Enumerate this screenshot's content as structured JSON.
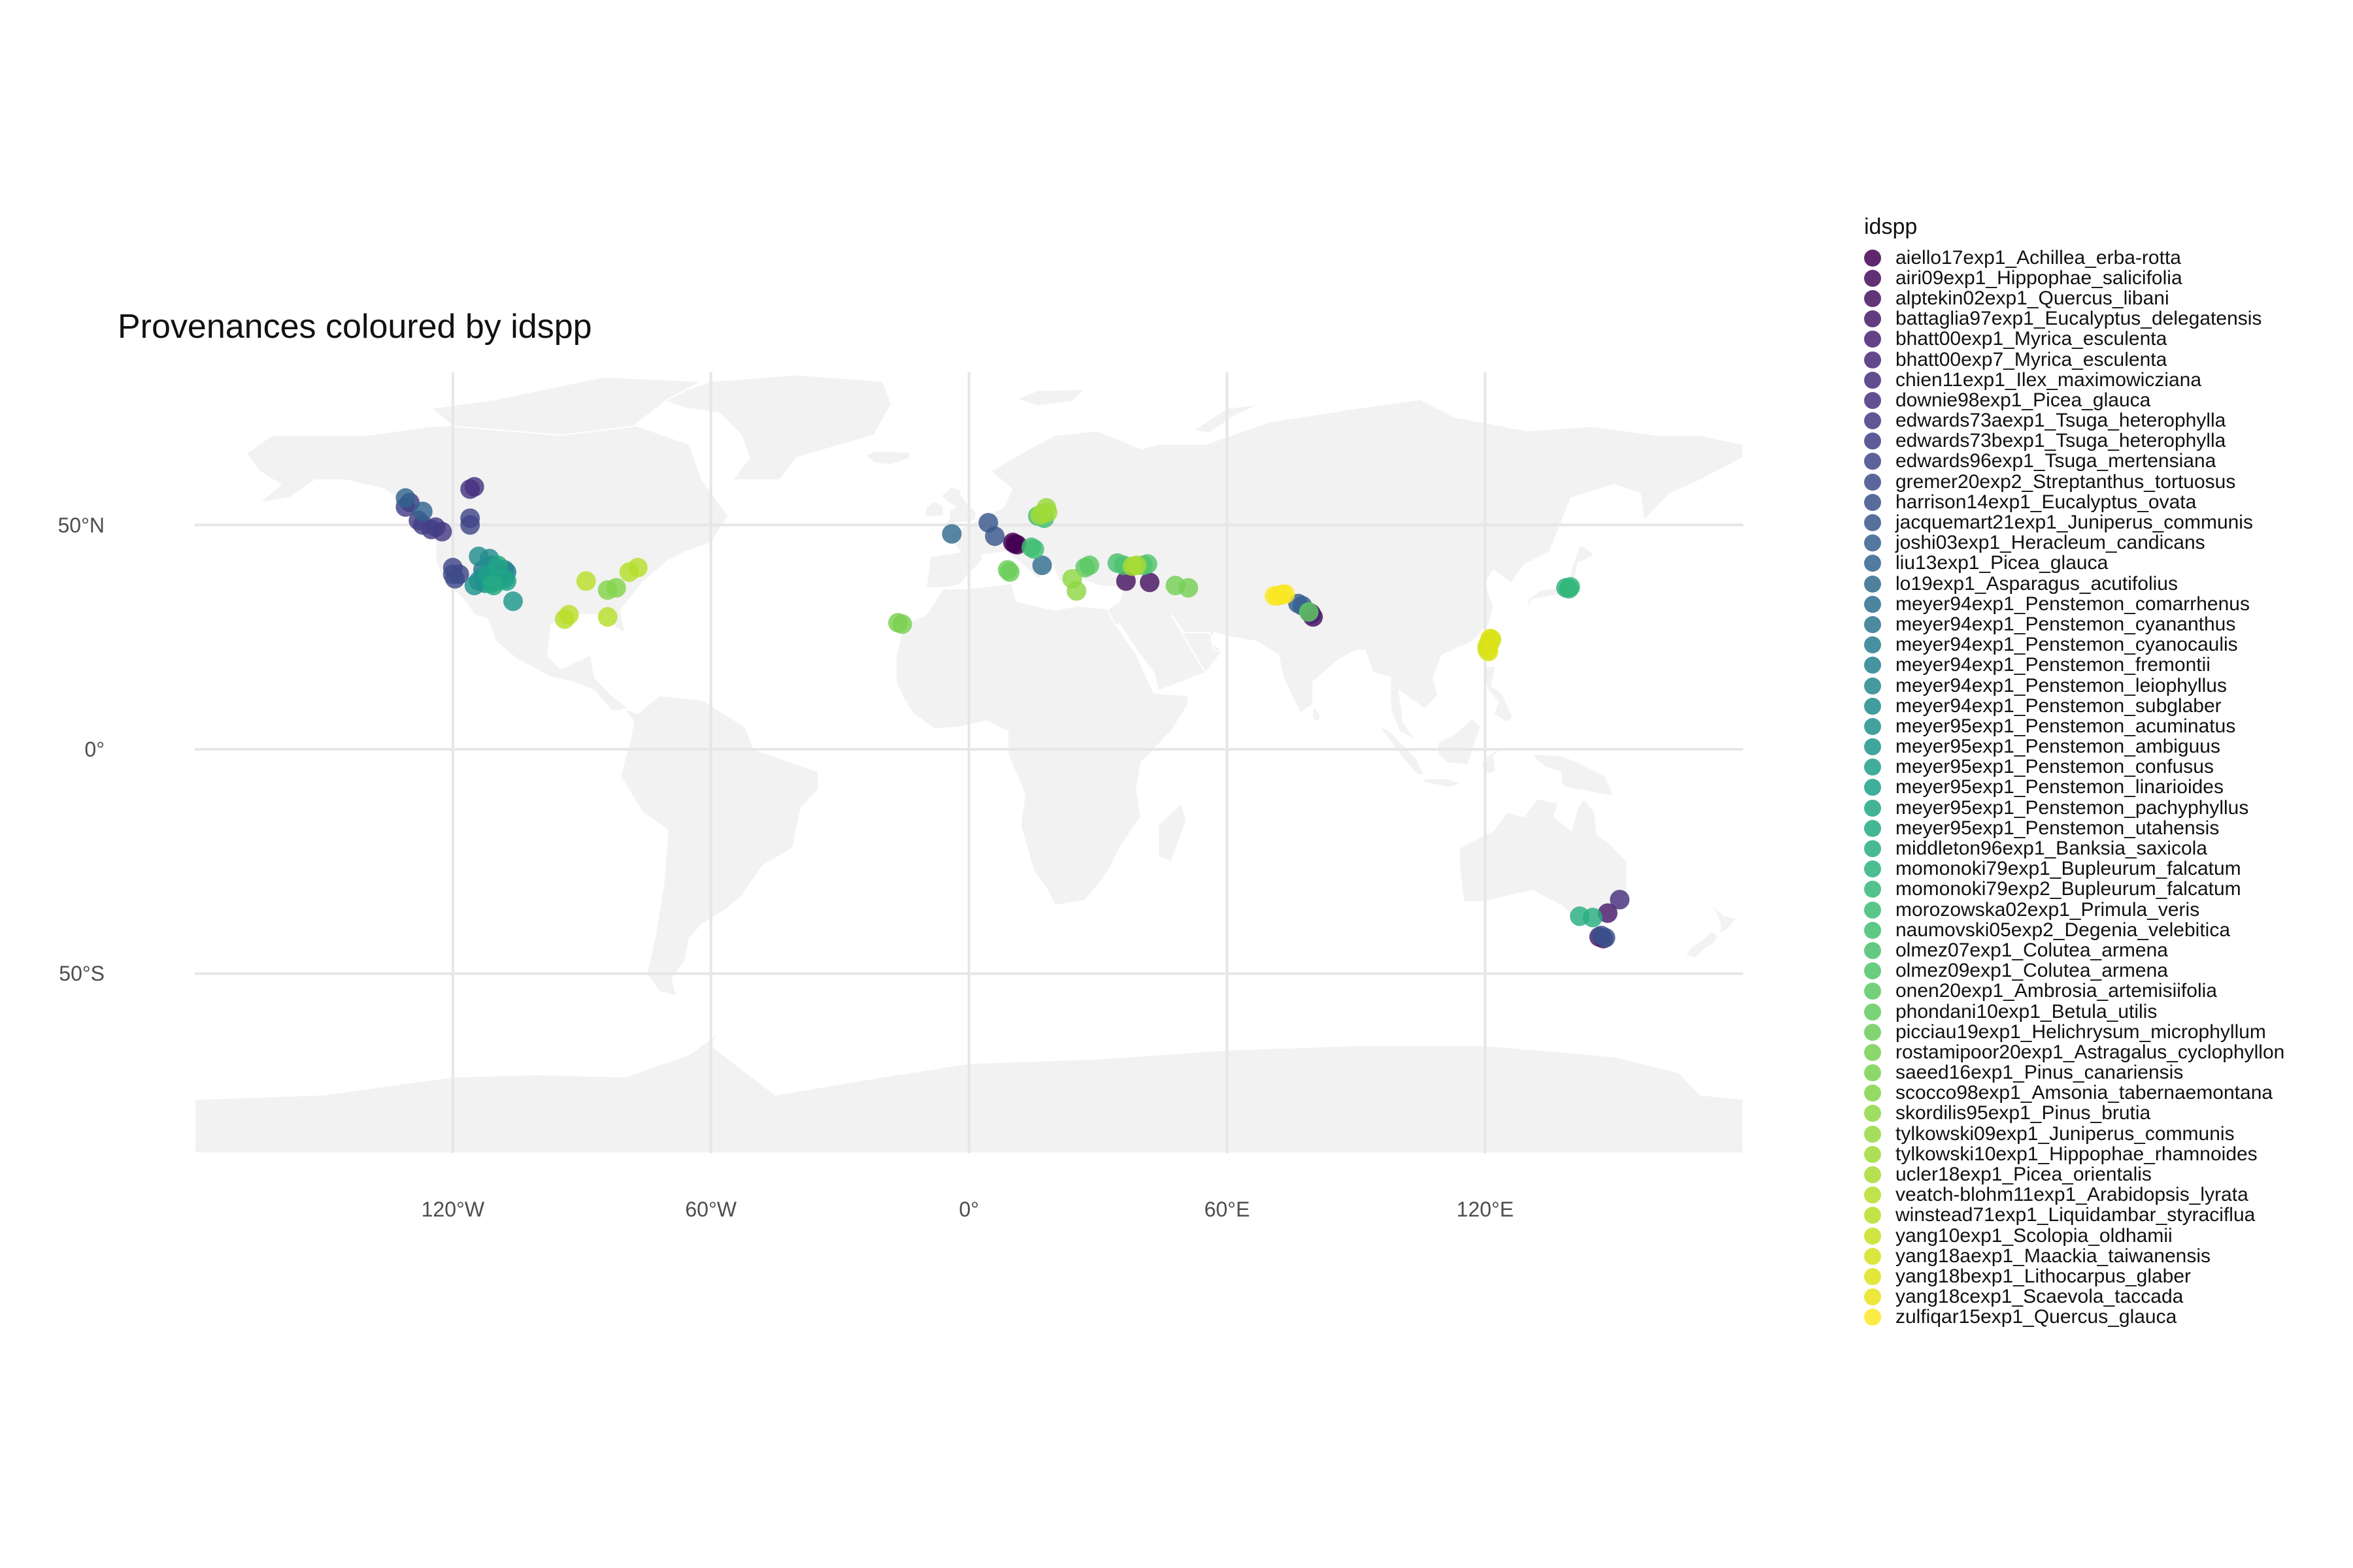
{
  "title": "Provenances coloured by idspp",
  "legend_title": "idspp",
  "colors": {
    "background": "#ffffff",
    "land": "#f2f2f2",
    "grid": "#e6e6e6"
  },
  "chart_data": {
    "type": "scatter",
    "title": "Provenances coloured by idspp",
    "xlabel": "",
    "ylabel": "",
    "xlim": [
      -180,
      180
    ],
    "ylim": [
      -90,
      84
    ],
    "x_ticks": [
      "120°W",
      "60°W",
      "0°",
      "60°E",
      "120°E"
    ],
    "x_tick_values": [
      -120,
      -60,
      0,
      60,
      120
    ],
    "y_ticks": [
      "50°N",
      "0°",
      "50°S"
    ],
    "y_tick_values": [
      50,
      0,
      -50
    ],
    "grid": true,
    "legend_position": "right",
    "palette": "viridis",
    "series": [
      {
        "name": "aiello17exp1_Achillea_erba-rotta",
        "color": "#440154",
        "points": [
          [
            10.7,
            45.8
          ],
          [
            11.2,
            45.6
          ],
          [
            10.2,
            46.1
          ]
        ]
      },
      {
        "name": "airi09exp1_Hippophae_salicifolia",
        "color": "#450a5c",
        "points": [
          [
            79.5,
            30.3
          ],
          [
            80,
            29.5
          ]
        ]
      },
      {
        "name": "alptekin02exp1_Quercus_libani",
        "color": "#461262",
        "points": [
          [
            36.5,
            37.5
          ],
          [
            42,
            37.2
          ]
        ]
      },
      {
        "name": "battaglia97exp1_Eucalyptus_delegatensis",
        "color": "#471a6a",
        "points": [
          [
            148.5,
            -36.5
          ],
          [
            146.5,
            -41.8
          ],
          [
            147.5,
            -42.2
          ]
        ]
      },
      {
        "name": "bhatt00exp1_Myrica_esculenta",
        "color": "#482172",
        "points": [
          [
            79.3,
            30.4
          ]
        ]
      },
      {
        "name": "bhatt00exp7_Myrica_esculenta",
        "color": "#482878",
        "points": [
          [
            79.6,
            30.1
          ]
        ]
      },
      {
        "name": "chien11exp1_Ilex_maximowicziana",
        "color": "#472e7c",
        "points": [
          [
            151.3,
            -33.5
          ]
        ]
      },
      {
        "name": "downie98exp1_Picea_glauca",
        "color": "#46337f",
        "points": [
          [
            -116,
            58
          ],
          [
            -115,
            58.5
          ]
        ]
      },
      {
        "name": "edwards73aexp1_Tsuga_heterophylla",
        "color": "#443a83",
        "points": [
          [
            -128,
            51
          ],
          [
            -124,
            49.5
          ],
          [
            -122.5,
            48.5
          ],
          [
            -130,
            55
          ]
        ]
      },
      {
        "name": "edwards73bexp1_Tsuga_heterophylla",
        "color": "#424086",
        "points": [
          [
            -127,
            50
          ],
          [
            -125,
            49
          ],
          [
            -131,
            54
          ]
        ]
      },
      {
        "name": "edwards96exp1_Tsuga_mertensiana",
        "color": "#404688",
        "points": [
          [
            -120,
            40.5
          ],
          [
            -118.5,
            39
          ],
          [
            -116,
            50
          ],
          [
            -116,
            51.5
          ]
        ]
      },
      {
        "name": "gremer20exp2_Streptanthus_tortuosus",
        "color": "#3e4c8a",
        "points": [
          [
            -119.5,
            38
          ],
          [
            -120,
            39
          ]
        ]
      },
      {
        "name": "harrison14exp1_Eucalyptus_ovata",
        "color": "#3b528b",
        "points": [
          [
            148,
            -42
          ],
          [
            147,
            -41.5
          ]
        ]
      },
      {
        "name": "jacquemart21exp1_Juniperus_communis",
        "color": "#39578c",
        "points": [
          [
            4.5,
            50.5
          ],
          [
            6,
            47.5
          ]
        ]
      },
      {
        "name": "joshi03exp1_Heracleum_candicans",
        "color": "#355f8d",
        "points": [
          [
            76.5,
            32.5
          ],
          [
            77.5,
            32
          ]
        ]
      },
      {
        "name": "liu13exp1_Picea_glauca",
        "color": "#32648e",
        "points": [
          [
            -131,
            56
          ],
          [
            -127,
            53
          ]
        ]
      },
      {
        "name": "lo19exp1_Asparagus_acutifolius",
        "color": "#2f6b8e",
        "points": [
          [
            17,
            41
          ],
          [
            -4,
            48
          ]
        ]
      },
      {
        "name": "meyer94exp1_Penstemon_comarrhenus",
        "color": "#2d708e",
        "points": [
          [
            -112,
            38
          ],
          [
            -110,
            37.5
          ]
        ]
      },
      {
        "name": "meyer94exp1_Penstemon_cyananthus",
        "color": "#2b758e",
        "points": [
          [
            -111,
            41
          ],
          [
            -113,
            40
          ]
        ]
      },
      {
        "name": "meyer94exp1_Penstemon_cyanocaulis",
        "color": "#287c8e",
        "points": [
          [
            -109,
            38.5
          ],
          [
            -108,
            40
          ]
        ]
      },
      {
        "name": "meyer94exp1_Penstemon_fremontii",
        "color": "#26818e",
        "points": [
          [
            -110,
            40.5
          ],
          [
            -107.5,
            39.5
          ]
        ]
      },
      {
        "name": "meyer94exp1_Penstemon_leiophyllus",
        "color": "#24878e",
        "points": [
          [
            -114,
            37.5
          ],
          [
            -112.5,
            37
          ]
        ]
      },
      {
        "name": "meyer94exp1_Penstemon_subglaber",
        "color": "#228c8d",
        "points": [
          [
            -111.5,
            42.5
          ],
          [
            -114,
            43
          ]
        ]
      },
      {
        "name": "meyer95exp1_Penstemon_acuminatus",
        "color": "#20928c",
        "points": [
          [
            -115,
            36.5
          ],
          [
            -113,
            38.5
          ]
        ]
      },
      {
        "name": "meyer95exp1_Penstemon_ambiguus",
        "color": "#1f978b",
        "points": [
          [
            -106,
            33
          ]
        ]
      },
      {
        "name": "meyer95exp1_Penstemon_confusus",
        "color": "#1f9d8a",
        "points": [
          [
            -112,
            39
          ],
          [
            -110.5,
            38
          ]
        ]
      },
      {
        "name": "meyer95exp1_Penstemon_linarioides",
        "color": "#1fa188",
        "points": [
          [
            -108,
            38
          ],
          [
            -107.5,
            37.5
          ]
        ]
      },
      {
        "name": "meyer95exp1_Penstemon_pachyphyllus",
        "color": "#21a685",
        "points": [
          [
            -109.5,
            41
          ],
          [
            -111,
            37
          ]
        ]
      },
      {
        "name": "meyer95exp1_Penstemon_utahensis",
        "color": "#24aa83",
        "points": [
          [
            -110.5,
            36.5
          ]
        ]
      },
      {
        "name": "middleton96exp1_Banksia_saxicola",
        "color": "#28ae80",
        "points": [
          [
            145,
            -37.5
          ],
          [
            142,
            -37.2
          ]
        ]
      },
      {
        "name": "momonoki79exp1_Bupleurum_falcatum",
        "color": "#2db27d",
        "points": [
          [
            139.5,
            35.8
          ],
          [
            138.8,
            36
          ]
        ]
      },
      {
        "name": "momonoki79exp2_Bupleurum_falcatum",
        "color": "#35b779",
        "points": [
          [
            139.8,
            36.2
          ]
        ]
      },
      {
        "name": "morozowska02exp1_Primula_veris",
        "color": "#3dbc74",
        "points": [
          [
            16,
            52
          ],
          [
            17.5,
            51.5
          ]
        ]
      },
      {
        "name": "naumovski05exp2_Degenia_velebitica",
        "color": "#42be71",
        "points": [
          [
            15.2,
            44.6
          ],
          [
            14.5,
            45
          ]
        ]
      },
      {
        "name": "olmez07exp1_Colutea_armena",
        "color": "#49c16d",
        "points": [
          [
            36,
            41
          ],
          [
            34.5,
            41.5
          ]
        ]
      },
      {
        "name": "olmez09exp1_Colutea_armena",
        "color": "#50c46a",
        "points": [
          [
            40.5,
            41
          ],
          [
            41.5,
            41.3
          ]
        ]
      },
      {
        "name": "onen20exp1_Ambrosia_artemisiifolia",
        "color": "#5cc863",
        "points": [
          [
            28,
            41
          ],
          [
            27,
            40.5
          ]
        ]
      },
      {
        "name": "phondani10exp1_Betula_utilis",
        "color": "#63cb5f",
        "points": [
          [
            79,
            30.6
          ]
        ]
      },
      {
        "name": "picciau19exp1_Helichrysum_microphyllum",
        "color": "#6ccd5a",
        "points": [
          [
            9,
            40
          ],
          [
            9.5,
            39.5
          ]
        ]
      },
      {
        "name": "rostamipoor20exp1_Astragalus_cyclophyllon",
        "color": "#75d054",
        "points": [
          [
            48,
            36.5
          ],
          [
            51,
            36
          ]
        ]
      },
      {
        "name": "saeed16exp1_Pinus_canariensis",
        "color": "#7ad151",
        "points": [
          [
            -16.5,
            28.2
          ],
          [
            -15.5,
            27.9
          ]
        ]
      },
      {
        "name": "scocco98exp1_Amsonia_tabernaemontana",
        "color": "#84d44b",
        "points": [
          [
            -84,
            35.5
          ],
          [
            -82,
            36
          ]
        ]
      },
      {
        "name": "skordilis95exp1_Pinus_brutia",
        "color": "#8fd744",
        "points": [
          [
            24,
            38
          ],
          [
            25,
            35.3
          ]
        ]
      },
      {
        "name": "tylkowski09exp1_Juniperus_communis",
        "color": "#95d840",
        "points": [
          [
            17,
            52.5
          ],
          [
            18,
            53.8
          ]
        ]
      },
      {
        "name": "tylkowski10exp1_Hippophae_rhamnoides",
        "color": "#9fda3a",
        "points": [
          [
            16.5,
            52.2
          ],
          [
            18.3,
            52.8
          ]
        ]
      },
      {
        "name": "ucler18exp1_Picea_orientalis",
        "color": "#a8db34",
        "points": [
          [
            38,
            40.8
          ],
          [
            39,
            41
          ]
        ]
      },
      {
        "name": "veatch-blohm11exp1_Arabidopsis_lyrata",
        "color": "#b5de2b",
        "points": [
          [
            -77,
            40.5
          ],
          [
            -79,
            39.5
          ],
          [
            -94,
            29
          ],
          [
            -84,
            29.5
          ]
        ]
      },
      {
        "name": "winstead71exp1_Liquidambar_styraciflua",
        "color": "#bade28",
        "points": [
          [
            -89,
            37.5
          ],
          [
            -93,
            30
          ]
        ]
      },
      {
        "name": "yang10exp1_Scolopia_oldhamii",
        "color": "#c8e020",
        "points": [
          [
            121,
            23.5
          ],
          [
            120.5,
            22.2
          ],
          [
            121.5,
            24.5
          ]
        ]
      },
      {
        "name": "yang18aexp1_Maackia_taiwanensis",
        "color": "#d2e21b",
        "points": [
          [
            121,
            24
          ],
          [
            120.5,
            23
          ]
        ]
      },
      {
        "name": "yang18bexp1_Lithocarpus_glaber",
        "color": "#dde318",
        "points": [
          [
            121.2,
            24.7
          ],
          [
            120.8,
            21.8
          ]
        ]
      },
      {
        "name": "yang18cexp1_Scaevola_taccada",
        "color": "#e7e419",
        "points": [
          [
            72.8,
            34.5
          ],
          [
            71.8,
            34.2
          ]
        ]
      },
      {
        "name": "zulfiqar15exp1_Quercus_glauca",
        "color": "#fde725",
        "points": [
          [
            73.5,
            34.6
          ],
          [
            71,
            34.2
          ]
        ]
      }
    ]
  }
}
